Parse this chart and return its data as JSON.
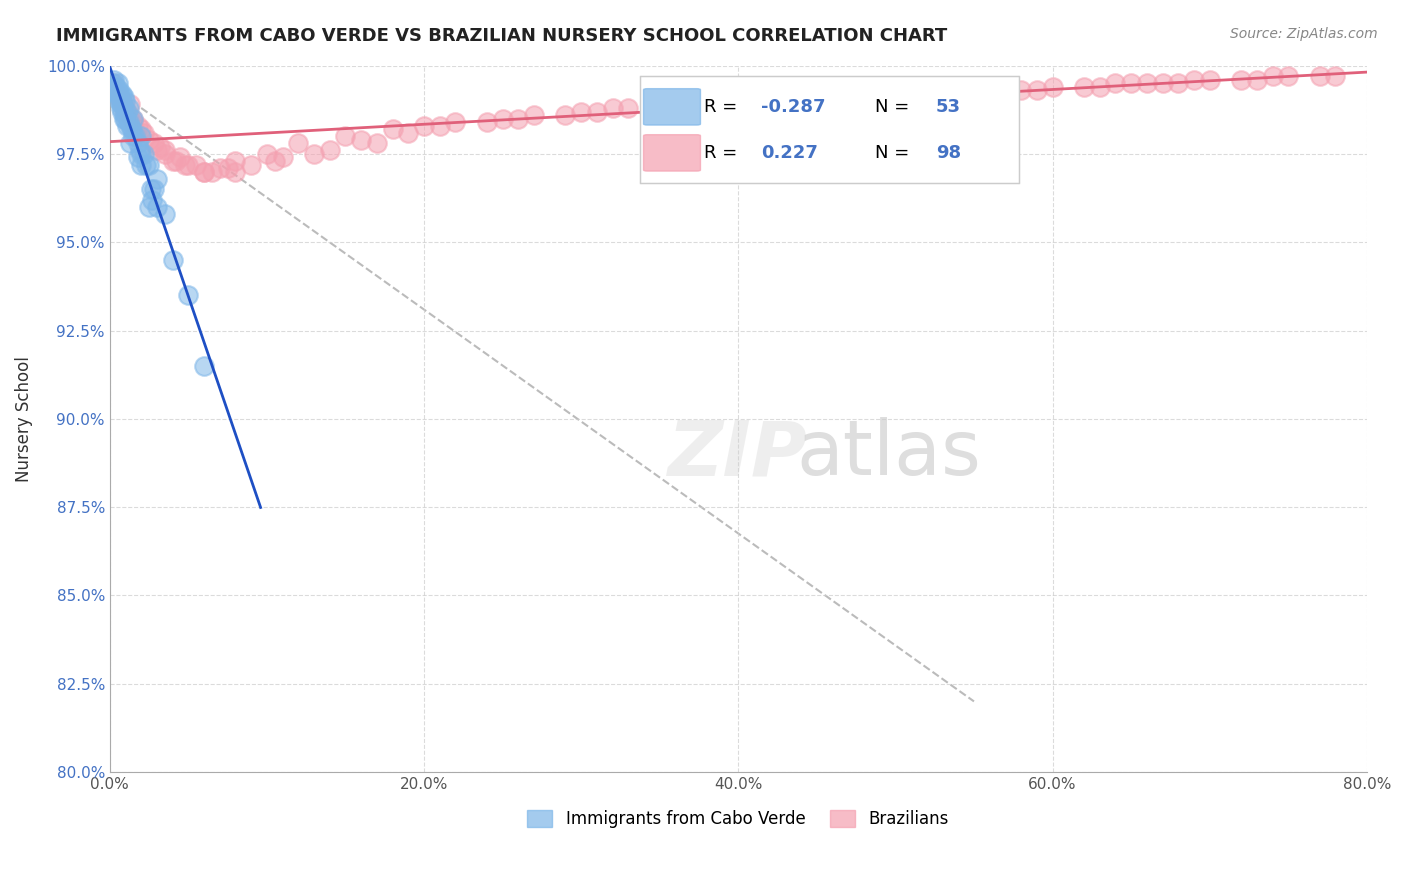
{
  "title": "IMMIGRANTS FROM CABO VERDE VS BRAZILIAN NURSERY SCHOOL CORRELATION CHART",
  "source": "Source: ZipAtlas.com",
  "xlabel_bottom": "",
  "ylabel": "Nursery School",
  "x_tick_labels": [
    "0.0%",
    "20.0%",
    "40.0%",
    "60.0%",
    "80.0%"
  ],
  "x_tick_values": [
    0.0,
    20.0,
    40.0,
    60.0,
    80.0
  ],
  "y_tick_labels": [
    "80.0%",
    "82.5%",
    "85.0%",
    "87.5%",
    "90.0%",
    "92.5%",
    "95.0%",
    "97.5%",
    "100.0%"
  ],
  "y_tick_values": [
    80.0,
    82.5,
    85.0,
    87.5,
    90.0,
    92.5,
    95.0,
    97.5,
    100.0
  ],
  "xlim": [
    0.0,
    80.0
  ],
  "ylim": [
    80.0,
    100.0
  ],
  "legend_R_blue": "-0.287",
  "legend_N_blue": "53",
  "legend_R_pink": "0.227",
  "legend_N_pink": "98",
  "legend_label_blue": "Immigrants from Cabo Verde",
  "legend_label_pink": "Brazilians",
  "blue_color": "#7EB6E8",
  "pink_color": "#F4A0B0",
  "blue_line_color": "#1E4FC4",
  "pink_line_color": "#E0607A",
  "watermark": "ZIPatlas",
  "cabo_verde_x": [
    0.5,
    0.8,
    1.0,
    1.2,
    0.3,
    0.6,
    0.9,
    1.5,
    2.0,
    0.4,
    0.7,
    1.1,
    1.8,
    2.5,
    0.2,
    0.5,
    0.8,
    1.3,
    2.2,
    3.0,
    0.3,
    0.6,
    1.0,
    1.6,
    2.8,
    0.4,
    0.9,
    1.4,
    2.0,
    3.5,
    0.5,
    0.7,
    1.2,
    1.9,
    2.7,
    0.3,
    0.8,
    1.5,
    2.3,
    4.0,
    0.6,
    1.0,
    1.8,
    2.6,
    5.0,
    0.7,
    1.1,
    2.0,
    3.0,
    6.0,
    0.9,
    1.3,
    2.5
  ],
  "cabo_verde_y": [
    99.5,
    99.2,
    99.0,
    98.8,
    99.6,
    99.3,
    99.1,
    98.5,
    98.0,
    99.4,
    99.1,
    98.7,
    97.8,
    97.2,
    99.5,
    99.2,
    98.9,
    98.3,
    97.5,
    96.8,
    99.4,
    99.0,
    98.6,
    98.0,
    96.5,
    99.3,
    98.8,
    98.2,
    97.5,
    95.8,
    99.2,
    98.9,
    98.4,
    97.6,
    96.2,
    99.3,
    98.7,
    98.0,
    97.2,
    94.5,
    99.1,
    98.5,
    97.4,
    96.5,
    93.5,
    98.8,
    98.3,
    97.2,
    96.0,
    91.5,
    98.5,
    97.8,
    96.0
  ],
  "brazil_x": [
    0.2,
    0.5,
    0.8,
    1.0,
    1.5,
    2.0,
    2.5,
    3.0,
    3.5,
    4.0,
    5.0,
    6.0,
    7.0,
    8.0,
    10.0,
    12.0,
    15.0,
    18.0,
    20.0,
    25.0,
    30.0,
    35.0,
    40.0,
    45.0,
    50.0,
    55.0,
    60.0,
    65.0,
    70.0,
    75.0,
    0.3,
    0.7,
    1.2,
    1.8,
    2.2,
    3.2,
    4.5,
    5.5,
    6.5,
    9.0,
    11.0,
    14.0,
    17.0,
    22.0,
    27.0,
    32.0,
    38.0,
    42.0,
    48.0,
    52.0,
    58.0,
    63.0,
    68.0,
    72.0,
    77.0,
    1.0,
    1.5,
    2.8,
    4.2,
    7.5,
    13.0,
    19.0,
    24.0,
    29.0,
    36.0,
    43.0,
    49.0,
    56.0,
    62.0,
    67.0,
    73.0,
    78.0,
    0.6,
    1.3,
    3.5,
    6.0,
    10.5,
    16.0,
    21.0,
    26.0,
    31.0,
    37.0,
    44.0,
    51.0,
    57.0,
    64.0,
    69.0,
    74.0,
    0.4,
    1.7,
    4.8,
    8.0,
    33.0,
    39.0,
    46.0,
    53.0,
    59.0,
    66.0
  ],
  "brazil_y": [
    99.5,
    99.2,
    99.0,
    98.8,
    98.5,
    98.2,
    97.9,
    97.6,
    97.5,
    97.3,
    97.2,
    97.0,
    97.1,
    97.3,
    97.5,
    97.8,
    98.0,
    98.2,
    98.3,
    98.5,
    98.7,
    98.9,
    99.0,
    99.1,
    99.2,
    99.3,
    99.4,
    99.5,
    99.6,
    99.7,
    99.3,
    99.0,
    98.6,
    98.3,
    98.1,
    97.7,
    97.4,
    97.2,
    97.0,
    97.2,
    97.4,
    97.6,
    97.8,
    98.4,
    98.6,
    98.8,
    98.9,
    99.0,
    99.1,
    99.2,
    99.3,
    99.4,
    99.5,
    99.6,
    99.7,
    98.7,
    98.4,
    97.8,
    97.3,
    97.1,
    97.5,
    98.1,
    98.4,
    98.6,
    99.0,
    99.1,
    99.2,
    99.3,
    99.4,
    99.5,
    99.6,
    99.7,
    99.1,
    98.9,
    97.6,
    97.0,
    97.3,
    97.9,
    98.3,
    98.5,
    98.7,
    98.9,
    99.0,
    99.1,
    99.3,
    99.5,
    99.6,
    99.7,
    99.2,
    98.1,
    97.2,
    97.0,
    98.8,
    98.9,
    99.1,
    99.2,
    99.3,
    99.5
  ]
}
